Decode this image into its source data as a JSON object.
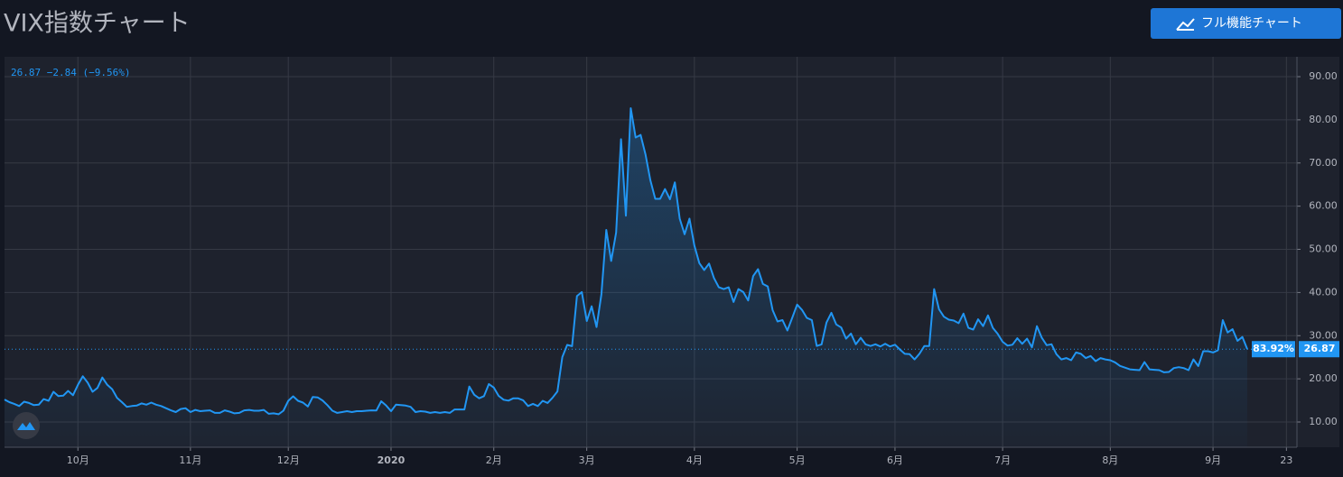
{
  "chart_data": {
    "type": "line",
    "title": "VIX指数チャート",
    "button_label": "フル機能チャート",
    "status_text": "26.87 −2.84 (−9.56%)",
    "change_badge": "83.92%",
    "color": "#2196f3",
    "grid": true,
    "ylim": [
      4.15,
      94.6
    ],
    "yticks": [
      {
        "value": 10,
        "label": "10.00"
      },
      {
        "value": 20,
        "label": "20.00"
      },
      {
        "value": 30,
        "label": "30.00"
      },
      {
        "value": 40,
        "label": "40.00"
      },
      {
        "value": 50,
        "label": "50.00"
      },
      {
        "value": 60,
        "label": "60.00"
      },
      {
        "value": 70,
        "label": "70.00"
      },
      {
        "value": 80,
        "label": "80.00"
      },
      {
        "value": 90,
        "label": "90.00"
      }
    ],
    "categories": [
      null,
      null,
      null,
      null,
      null,
      null,
      null,
      null,
      null,
      null,
      null,
      null,
      null,
      null,
      null,
      "10月",
      null,
      null,
      null,
      null,
      null,
      null,
      null,
      null,
      null,
      null,
      null,
      null,
      null,
      null,
      null,
      null,
      null,
      null,
      null,
      null,
      null,
      null,
      "11月",
      null,
      null,
      null,
      null,
      null,
      null,
      null,
      null,
      null,
      null,
      null,
      null,
      null,
      null,
      null,
      null,
      null,
      null,
      null,
      "12月",
      null,
      null,
      null,
      null,
      null,
      null,
      null,
      null,
      null,
      null,
      null,
      null,
      null,
      null,
      null,
      null,
      null,
      null,
      null,
      null,
      "2020",
      null,
      null,
      null,
      null,
      null,
      null,
      null,
      null,
      null,
      null,
      null,
      null,
      null,
      null,
      null,
      null,
      null,
      null,
      null,
      null,
      "2月",
      null,
      null,
      null,
      null,
      null,
      null,
      null,
      null,
      null,
      null,
      null,
      null,
      null,
      null,
      null,
      null,
      null,
      null,
      "3月",
      null,
      null,
      null,
      null,
      null,
      null,
      null,
      null,
      null,
      null,
      null,
      null,
      null,
      null,
      null,
      null,
      null,
      null,
      null,
      null,
      null,
      "4月",
      null,
      null,
      null,
      null,
      null,
      null,
      null,
      null,
      null,
      null,
      null,
      null,
      null,
      null,
      null,
      null,
      null,
      null,
      null,
      null,
      "5月",
      null,
      null,
      null,
      null,
      null,
      null,
      null,
      null,
      null,
      null,
      null,
      null,
      null,
      null,
      null,
      null,
      null,
      null,
      null,
      "6月",
      null,
      null,
      null,
      null,
      null,
      null,
      null,
      null,
      null,
      null,
      null,
      null,
      null,
      null,
      null,
      null,
      null,
      null,
      null,
      null,
      null,
      "7月",
      null,
      null,
      null,
      null,
      null,
      null,
      null,
      null,
      null,
      null,
      null,
      null,
      null,
      null,
      null,
      null,
      null,
      null,
      null,
      null,
      null,
      "8月",
      null,
      null,
      null,
      null,
      null,
      null,
      null,
      null,
      null,
      null,
      null,
      null,
      null,
      null,
      null,
      null,
      null,
      null,
      null,
      null,
      "9月",
      null,
      null,
      null,
      null,
      null,
      null,
      null,
      null,
      null,
      null,
      null,
      null,
      null,
      null,
      "23",
      null,
      null
    ],
    "values": [
      15.2,
      14.6,
      14.2,
      13.7,
      14.7,
      14.4,
      13.9,
      14.0,
      15.3,
      14.9,
      17.0,
      16.0,
      16.1,
      17.2,
      16.2,
      18.6,
      20.6,
      19.1,
      17.0,
      17.9,
      20.3,
      18.6,
      17.6,
      15.6,
      14.6,
      13.5,
      13.7,
      13.8,
      14.3,
      14.0,
      14.5,
      14.0,
      13.7,
      13.2,
      12.7,
      12.3,
      13.0,
      13.2,
      12.3,
      12.8,
      12.5,
      12.6,
      12.7,
      12.1,
      12.1,
      12.7,
      12.4,
      12.0,
      12.1,
      12.7,
      12.8,
      12.6,
      12.6,
      12.8,
      11.9,
      12.0,
      11.8,
      12.6,
      14.9,
      15.96,
      14.9,
      14.5,
      13.6,
      15.8,
      15.7,
      14.99,
      13.9,
      12.6,
      12.1,
      12.3,
      12.5,
      12.3,
      12.5,
      12.5,
      12.6,
      12.7,
      12.65,
      14.8,
      13.8,
      12.5,
      14.0,
      13.9,
      13.8,
      13.5,
      12.3,
      12.5,
      12.4,
      12.1,
      12.3,
      12.1,
      12.3,
      12.1,
      12.9,
      12.9,
      12.9,
      18.2,
      16.3,
      15.5,
      16.0,
      18.8,
      17.97,
      16.05,
      15.15,
      14.96,
      15.5,
      15.47,
      15.04,
      13.7,
      14.2,
      13.7,
      14.9,
      14.4,
      15.6,
      17.08,
      25.03,
      27.85,
      27.56,
      39.16,
      40.11,
      33.4,
      36.8,
      31.99,
      39.6,
      54.5,
      47.3,
      53.9,
      75.5,
      57.8,
      82.7,
      75.9,
      76.5,
      72.0,
      66.0,
      61.7,
      61.7,
      63.95,
      61.6,
      65.5,
      57.1,
      53.5,
      57.1,
      50.9,
      46.8,
      45.2,
      46.7,
      43.35,
      41.2,
      40.8,
      41.2,
      37.8,
      40.8,
      40.1,
      38.15,
      43.8,
      45.4,
      41.98,
      41.4,
      35.9,
      33.3,
      33.6,
      31.2,
      34.15,
      37.2,
      35.97,
      34.1,
      33.6,
      27.6,
      27.98,
      33.04,
      35.3,
      32.6,
      31.9,
      29.3,
      30.5,
      28.0,
      29.5,
      27.99,
      27.6,
      28.0,
      27.5,
      28.1,
      27.5,
      27.9,
      26.8,
      25.8,
      25.7,
      24.5,
      25.8,
      27.6,
      27.6,
      40.8,
      36.1,
      34.4,
      33.7,
      33.5,
      32.9,
      35.1,
      31.8,
      31.4,
      33.8,
      32.2,
      34.7,
      31.8,
      30.4,
      28.6,
      27.7,
      27.9,
      29.4,
      28.1,
      29.3,
      27.3,
      32.2,
      29.5,
      27.8,
      28.0,
      25.7,
      24.5,
      24.8,
      24.3,
      26.1,
      25.8,
      24.8,
      25.3,
      24.1,
      24.8,
      24.5,
      24.3,
      23.8,
      23.0,
      22.6,
      22.2,
      22.1,
      22.0,
      23.9,
      22.2,
      22.1,
      22.0,
      21.5,
      21.6,
      22.5,
      22.7,
      22.5,
      22.0,
      24.5,
      22.96,
      26.4,
      26.4,
      26.1,
      26.6,
      33.6,
      30.75,
      31.5,
      28.8,
      29.7,
      26.87,
      null,
      null,
      null,
      null,
      null,
      null,
      null,
      null,
      null,
      null
    ]
  }
}
